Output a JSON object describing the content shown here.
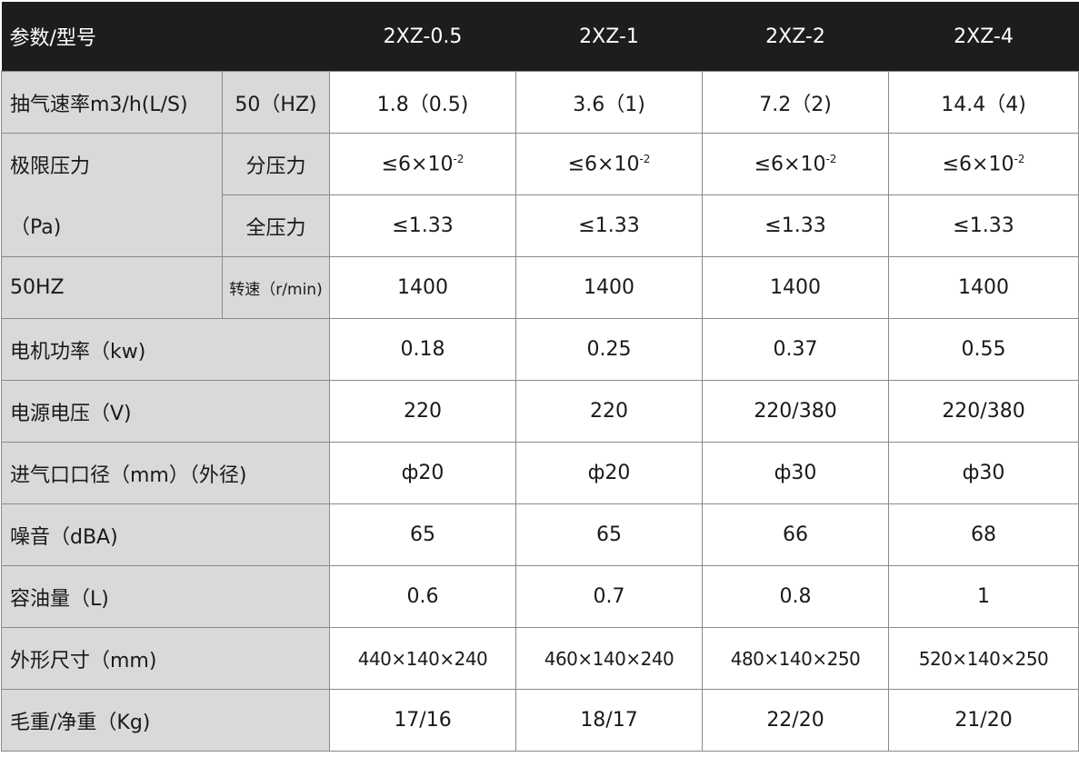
{
  "header": {
    "param": "参数/型号",
    "models": [
      "2XZ-0.5",
      "2XZ-1",
      "2XZ-2",
      "2XZ-4"
    ]
  },
  "rows": {
    "pump_speed": {
      "label": "抽气速率m3/h(L/S)",
      "sub": "50（HZ)",
      "values": [
        "1.8（0.5)",
        "3.6（1)",
        "7.2（2)",
        "14.4（4)"
      ]
    },
    "ultimate": {
      "label_top": "极限压力",
      "label_bottom": "（Pa)",
      "partial": {
        "sub": "分压力",
        "base": "≤6×10",
        "exp": "-2"
      },
      "total": {
        "sub": "全压力",
        "values": [
          "≤1.33",
          "≤1.33",
          "≤1.33",
          "≤1.33"
        ]
      }
    },
    "rpm": {
      "label": "50HZ",
      "sub": "转速（r/min)",
      "values": [
        "1400",
        "1400",
        "1400",
        "1400"
      ]
    },
    "power": {
      "label": "电机功率（kw)",
      "values": [
        "0.18",
        "0.25",
        "0.37",
        "0.55"
      ]
    },
    "voltage": {
      "label": "电源电压（V)",
      "values": [
        "220",
        "220",
        "220/380",
        "220/380"
      ]
    },
    "inlet": {
      "label": "进气口口径（mm）（外径)",
      "values": [
        "ф20",
        "ф20",
        "ф30",
        "ф30"
      ]
    },
    "noise": {
      "label": "噪音（dBA)",
      "values": [
        "65",
        "65",
        "66",
        "68"
      ]
    },
    "oil": {
      "label": "容油量（L)",
      "values": [
        "0.6",
        "0.7",
        "0.8",
        "1"
      ]
    },
    "dims": {
      "label": "外形尺寸（mm)",
      "values": [
        "440×140×240",
        "460×140×240",
        "480×140×250",
        "520×140×250"
      ]
    },
    "weight": {
      "label": "毛重/净重（Kg)",
      "values": [
        "17/16",
        "18/17",
        "22/20",
        "21/20"
      ]
    }
  }
}
